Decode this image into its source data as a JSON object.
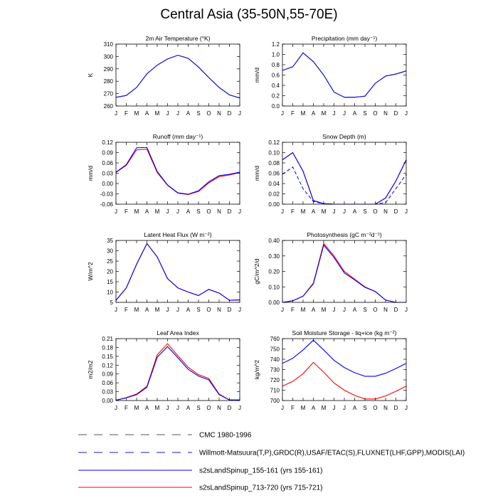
{
  "title": "Central Asia (35-50N,55-70E)",
  "months": [
    "J",
    "F",
    "M",
    "A",
    "M",
    "J",
    "J",
    "A",
    "S",
    "O",
    "N",
    "D",
    "J"
  ],
  "colors": {
    "obs": "#1a1acc",
    "run1": "#0000ff",
    "run2": "#ff0000"
  },
  "legend": [
    {
      "label": "CMC 1980-1996",
      "style": "dash",
      "color": "#555555"
    },
    {
      "label": "Willmott-Matsuura(T,P),GRDC(R),USAF/ETAC(S),FLUXNET(LHF,GPP),MODIS(LAI)",
      "style": "dash",
      "color": "#1a1acc"
    },
    {
      "label": "s2sLandSpinup_155-161 (yrs 155-161)",
      "style": "solid",
      "color": "#0000ff"
    },
    {
      "label": "s2sLandSpinup_713-720 (yrs 715-721)",
      "style": "solid",
      "color": "#ff0000"
    }
  ],
  "chart_data": [
    {
      "type": "line",
      "title": "2m Air Temperature (°K)",
      "ylabel": "K",
      "ylim": [
        260,
        310
      ],
      "yticks": [
        260,
        270,
        280,
        290,
        300,
        310
      ],
      "tick_labels": [
        "260",
        "270",
        "280",
        "290",
        "300",
        "310"
      ],
      "series": [
        {
          "values": [
            267,
            268.5,
            275,
            286,
            293,
            298,
            301,
            298.5,
            291.5,
            283,
            275,
            269,
            266.5
          ],
          "color": "#0000ff",
          "dash": false
        },
        {
          "values": [
            267,
            268.5,
            275,
            286,
            293,
            298,
            301,
            298.5,
            291.5,
            283,
            275,
            269,
            266.5
          ],
          "color": "#1a1acc",
          "dash": false
        }
      ]
    },
    {
      "type": "line",
      "title": "Precipitation (mm day⁻¹)",
      "ylabel": "mm/d",
      "ylim": [
        0,
        1.2
      ],
      "yticks": [
        0,
        0.2,
        0.4,
        0.6,
        0.8,
        1.0,
        1.2
      ],
      "tick_labels": [
        "0.0",
        "0.2",
        "0.4",
        "0.6",
        "0.8",
        "1.0",
        "1.2"
      ],
      "series": [
        {
          "values": [
            0.69,
            0.76,
            1.03,
            0.86,
            0.6,
            0.27,
            0.17,
            0.17,
            0.19,
            0.44,
            0.58,
            0.62,
            0.68
          ],
          "color": "#0000ff",
          "dash": false
        },
        {
          "values": [
            0.69,
            0.76,
            1.03,
            0.86,
            0.6,
            0.27,
            0.17,
            0.17,
            0.19,
            0.44,
            0.58,
            0.62,
            0.68
          ],
          "color": "#1a1acc",
          "dash": false
        }
      ]
    },
    {
      "type": "line",
      "title": "Runoff (mm day⁻¹)",
      "ylabel": "mm/d",
      "ylim": [
        -0.06,
        0.12
      ],
      "yticks": [
        -0.06,
        -0.03,
        0.0,
        0.03,
        0.06,
        0.09,
        0.12
      ],
      "tick_labels": [
        "-0.06",
        "-0.03",
        "0.00",
        "0.03",
        "0.06",
        "0.09",
        "0.12"
      ],
      "series": [
        {
          "values": [
            0.032,
            0.053,
            0.098,
            0.1,
            0.032,
            -0.005,
            -0.028,
            -0.032,
            -0.023,
            0.002,
            0.02,
            0.025,
            0.032
          ],
          "color": "#ff0000",
          "dash": false
        },
        {
          "values": [
            0.033,
            0.055,
            0.104,
            0.105,
            0.035,
            -0.004,
            -0.027,
            -0.031,
            -0.021,
            0.005,
            0.023,
            0.027,
            0.033
          ],
          "color": "#0000ff",
          "dash": false
        }
      ]
    },
    {
      "type": "line",
      "title": "Snow Depth (m)",
      "ylabel": "mm/d",
      "ylim": [
        0,
        0.12
      ],
      "yticks": [
        0,
        0.02,
        0.04,
        0.06,
        0.08,
        0.1,
        0.12
      ],
      "tick_labels": [
        "0.00",
        "0.02",
        "0.04",
        "0.06",
        "0.08",
        "0.10",
        "0.12"
      ],
      "series": [
        {
          "values": [
            0.058,
            0.072,
            0.03,
            0.005,
            0.001,
            0.0,
            0.0,
            0.0,
            0.0,
            0.0,
            0.003,
            0.03,
            0.058
          ],
          "color": "#1a1acc",
          "dash": true
        },
        {
          "values": [
            0.086,
            0.1,
            0.064,
            0.007,
            0.001,
            0.0,
            0.0,
            0.0,
            0.0,
            0.0,
            0.012,
            0.045,
            0.086
          ],
          "color": "#ff0000",
          "dash": false
        },
        {
          "values": [
            0.086,
            0.1,
            0.064,
            0.007,
            0.001,
            0.0,
            0.0,
            0.0,
            0.0,
            0.0,
            0.012,
            0.045,
            0.086
          ],
          "color": "#0000ff",
          "dash": false
        }
      ]
    },
    {
      "type": "line",
      "title": "Latent Heat Flux (W m⁻²)",
      "ylabel": "W/m^2",
      "ylim": [
        5,
        35
      ],
      "yticks": [
        5,
        10,
        15,
        20,
        25,
        30,
        35
      ],
      "tick_labels": [
        "5",
        "10",
        "15",
        "20",
        "25",
        "30",
        "35"
      ],
      "series": [
        {
          "values": [
            6,
            12,
            23.5,
            33.5,
            27,
            16.5,
            12,
            10,
            8.3,
            11.3,
            9.5,
            6,
            6.2
          ],
          "color": "#ff0000",
          "dash": false
        },
        {
          "values": [
            6,
            12,
            23.5,
            33.5,
            27,
            16.5,
            12,
            10,
            8.3,
            11.3,
            9.5,
            6,
            6.2
          ],
          "color": "#0000ff",
          "dash": false
        }
      ]
    },
    {
      "type": "line",
      "title": "Photosynthesis (gC m⁻²d⁻¹)",
      "ylabel": "gC/m^2/d",
      "ylim": [
        0,
        0.4
      ],
      "yticks": [
        0,
        0.1,
        0.2,
        0.3,
        0.4
      ],
      "tick_labels": [
        "0.00",
        "0.10",
        "0.20",
        "0.30",
        "0.40"
      ],
      "series": [
        {
          "values": [
            0.0,
            0.01,
            0.04,
            0.125,
            0.38,
            0.3,
            0.2,
            0.15,
            0.1,
            0.07,
            0.015,
            0.0,
            0.0
          ],
          "color": "#ff0000",
          "dash": false
        },
        {
          "values": [
            0.0,
            0.01,
            0.04,
            0.12,
            0.37,
            0.29,
            0.19,
            0.145,
            0.097,
            0.07,
            0.015,
            0.0,
            0.0
          ],
          "color": "#0000ff",
          "dash": false
        }
      ]
    },
    {
      "type": "line",
      "title": "Leaf Area Index",
      "ylabel": "m2/m2",
      "ylim": [
        0,
        0.21
      ],
      "yticks": [
        0,
        0.03,
        0.06,
        0.09,
        0.12,
        0.15,
        0.18,
        0.21
      ],
      "tick_labels": [
        "0.00",
        "0.03",
        "0.06",
        "0.09",
        "0.12",
        "0.15",
        "0.18",
        "0.21"
      ],
      "series": [
        {
          "values": [
            0.001,
            0.01,
            0.022,
            0.048,
            0.155,
            0.193,
            0.152,
            0.113,
            0.088,
            0.075,
            0.022,
            0.002,
            0.002
          ],
          "color": "#ff0000",
          "dash": false
        },
        {
          "values": [
            0.001,
            0.009,
            0.02,
            0.045,
            0.147,
            0.183,
            0.145,
            0.106,
            0.083,
            0.07,
            0.02,
            0.002,
            0.002
          ],
          "color": "#0000ff",
          "dash": false
        }
      ]
    },
    {
      "type": "line",
      "title": "Soil Moisture Storage - liq+ice (kg m⁻²)",
      "ylabel": "kg/m^2",
      "ylim": [
        700,
        760
      ],
      "yticks": [
        700,
        710,
        720,
        730,
        740,
        750,
        760
      ],
      "tick_labels": [
        "700",
        "710",
        "720",
        "730",
        "740",
        "750",
        "760"
      ],
      "series": [
        {
          "values": [
            714,
            718.5,
            726,
            737,
            727.5,
            717,
            710,
            705,
            701.5,
            701.5,
            704.5,
            709,
            714
          ],
          "color": "#ff0000",
          "dash": false
        },
        {
          "values": [
            736,
            741,
            749,
            758.5,
            749,
            739,
            732,
            727,
            723.5,
            723.5,
            726.5,
            731,
            736
          ],
          "color": "#0000ff",
          "dash": false
        }
      ]
    }
  ]
}
